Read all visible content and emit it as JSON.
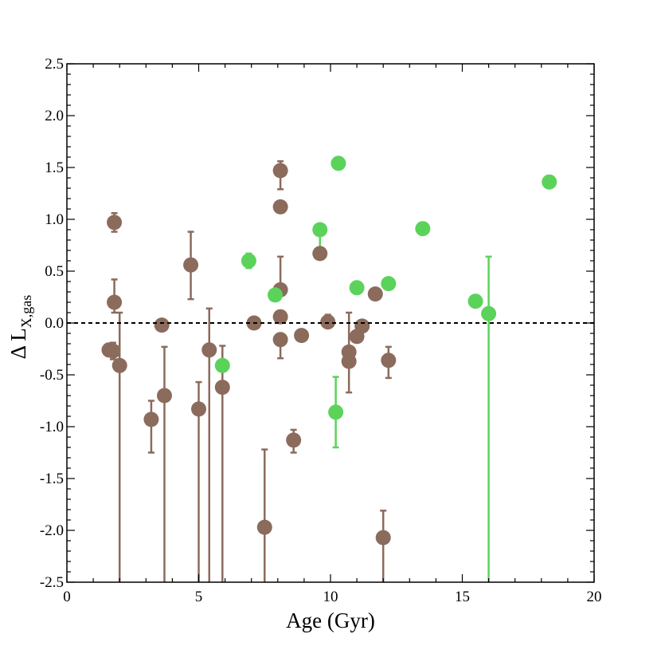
{
  "chart_data": {
    "type": "scatter",
    "xlabel": "Age (Gyr)",
    "ylabel_main": "Δ L",
    "ylabel_sub": "X,gas",
    "xlim": [
      0,
      20
    ],
    "ylim": [
      -2.5,
      2.5
    ],
    "x_ticks": [
      0,
      5,
      10,
      15,
      20
    ],
    "x_tick_labels": [
      "0",
      "5",
      "10",
      "15",
      "20"
    ],
    "y_ticks": [
      -2.5,
      -2.0,
      -1.5,
      -1.0,
      -0.5,
      0.0,
      0.5,
      1.0,
      1.5,
      2.0,
      2.5
    ],
    "y_tick_labels": [
      "-2.5",
      "-2.0",
      "-1.5",
      "-1.0",
      "-0.5",
      "0.0",
      "0.5",
      "1.0",
      "1.5",
      "2.0",
      "2.5"
    ],
    "reference_line_y": 0,
    "reference_line_style": "dashed",
    "grid": false,
    "series": [
      {
        "color": "#8B6B5C",
        "points": [
          {
            "x": 1.6,
            "y": -0.26,
            "err_low": 0.06,
            "err_high": 0.06
          },
          {
            "x": 1.75,
            "y": -0.27,
            "err_low": 0.08,
            "err_high": 0.08
          },
          {
            "x": 1.8,
            "y": 0.97,
            "err_low": 0.09,
            "err_high": 0.09
          },
          {
            "x": 1.8,
            "y": 0.2,
            "err_low": 0.1,
            "err_high": 0.22
          },
          {
            "x": 2.0,
            "y": -0.41,
            "err_low": 2.09,
            "err_high": 0.51
          },
          {
            "x": 3.2,
            "y": -0.93,
            "err_low": 0.32,
            "err_high": 0.18
          },
          {
            "x": 3.6,
            "y": -0.02,
            "err_low": 0.0,
            "err_high": 0.0
          },
          {
            "x": 3.7,
            "y": -0.7,
            "err_low": 1.8,
            "err_high": 0.47
          },
          {
            "x": 4.7,
            "y": 0.56,
            "err_low": 0.33,
            "err_high": 0.32
          },
          {
            "x": 5.0,
            "y": -0.83,
            "err_low": 1.67,
            "err_high": 0.26
          },
          {
            "x": 5.4,
            "y": -0.26,
            "err_low": 2.24,
            "err_high": 0.4
          },
          {
            "x": 5.9,
            "y": -0.62,
            "err_low": 1.88,
            "err_high": 0.4
          },
          {
            "x": 7.1,
            "y": 0.0,
            "err_low": 0.0,
            "err_high": 0.0
          },
          {
            "x": 7.5,
            "y": -1.97,
            "err_low": 0.53,
            "err_high": 0.75
          },
          {
            "x": 8.1,
            "y": 1.47,
            "err_low": 0.18,
            "err_high": 0.09
          },
          {
            "x": 8.1,
            "y": 1.12,
            "err_low": 0.0,
            "err_high": 0.0
          },
          {
            "x": 8.1,
            "y": 0.32,
            "err_low": 0.0,
            "err_high": 0.32
          },
          {
            "x": 8.1,
            "y": 0.06,
            "err_low": 0.0,
            "err_high": 0.0
          },
          {
            "x": 8.1,
            "y": -0.16,
            "err_low": 0.18,
            "err_high": 0.0
          },
          {
            "x": 8.6,
            "y": -1.13,
            "err_low": 0.12,
            "err_high": 0.1
          },
          {
            "x": 8.9,
            "y": -0.12,
            "err_low": 0.0,
            "err_high": 0.0
          },
          {
            "x": 9.6,
            "y": 0.67,
            "err_low": 0.0,
            "err_high": 0.0
          },
          {
            "x": 9.9,
            "y": 0.01,
            "err_low": 0.0,
            "err_high": 0.07
          },
          {
            "x": 10.7,
            "y": -0.28,
            "err_low": 0.0,
            "err_high": 0.38
          },
          {
            "x": 10.7,
            "y": -0.37,
            "err_low": 0.3,
            "err_high": 0.0
          },
          {
            "x": 11.0,
            "y": -0.13,
            "err_low": 0.0,
            "err_high": 0.0
          },
          {
            "x": 11.2,
            "y": -0.03,
            "err_low": 0.0,
            "err_high": 0.0
          },
          {
            "x": 11.7,
            "y": 0.28,
            "err_low": 0.0,
            "err_high": 0.0
          },
          {
            "x": 12.0,
            "y": -2.07,
            "err_low": 0.43,
            "err_high": 0.26
          },
          {
            "x": 12.2,
            "y": -0.36,
            "err_low": 0.17,
            "err_high": 0.13
          }
        ]
      },
      {
        "color": "#5BD35B",
        "points": [
          {
            "x": 5.9,
            "y": -0.41,
            "err_low": 0.0,
            "err_high": 0.0
          },
          {
            "x": 6.9,
            "y": 0.6,
            "err_low": 0.07,
            "err_high": 0.07
          },
          {
            "x": 7.9,
            "y": 0.27,
            "err_low": 0.0,
            "err_high": 0.0
          },
          {
            "x": 9.6,
            "y": 0.9,
            "err_low": 0.19,
            "err_high": 0.0
          },
          {
            "x": 10.2,
            "y": -0.86,
            "err_low": 0.34,
            "err_high": 0.34
          },
          {
            "x": 10.3,
            "y": 1.54,
            "err_low": 0.0,
            "err_high": 0.0
          },
          {
            "x": 11.0,
            "y": 0.34,
            "err_low": 0.0,
            "err_high": 0.0
          },
          {
            "x": 12.2,
            "y": 0.38,
            "err_low": 0.0,
            "err_high": 0.0
          },
          {
            "x": 13.5,
            "y": 0.91,
            "err_low": 0.0,
            "err_high": 0.0
          },
          {
            "x": 15.5,
            "y": 0.21,
            "err_low": 0.0,
            "err_high": 0.0
          },
          {
            "x": 16.0,
            "y": 0.09,
            "err_low": 2.59,
            "err_high": 0.55
          },
          {
            "x": 18.3,
            "y": 1.36,
            "err_low": 0.0,
            "err_high": 0.0
          }
        ]
      }
    ]
  }
}
